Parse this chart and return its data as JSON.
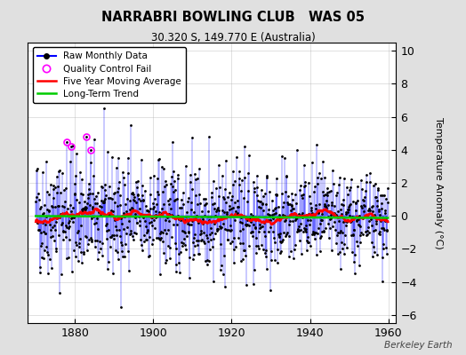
{
  "title": "NARRABRI BOWLING CLUB   WAS 05",
  "subtitle": "30.320 S, 149.770 E (Australia)",
  "ylabel": "Temperature Anomaly (°C)",
  "watermark": "Berkeley Earth",
  "xlim": [
    1868,
    1962
  ],
  "ylim": [
    -6.5,
    10.5
  ],
  "yticks": [
    -6,
    -4,
    -2,
    0,
    2,
    4,
    6,
    8,
    10
  ],
  "xticks": [
    1880,
    1900,
    1920,
    1940,
    1960
  ],
  "raw_color": "#0000ff",
  "ma_color": "#ff0000",
  "trend_color": "#00cc00",
  "qc_color": "#ff00ff",
  "bg_color": "#e0e0e0",
  "plot_bg": "#ffffff",
  "seed": 42,
  "n_months": 1080,
  "start_year": 1870.0,
  "qc_fail_indices": [
    96,
    108,
    156,
    168
  ]
}
